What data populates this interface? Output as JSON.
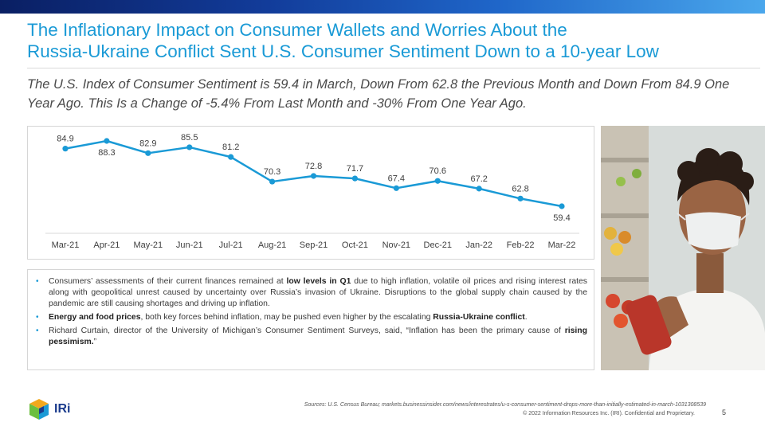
{
  "header": {
    "title_line1": "The Inflationary Impact on Consumer Wallets and Worries About the",
    "title_line2": "Russia-Ukraine Conflict Sent U.S. Consumer Sentiment Down to a 10-year Low",
    "subtitle": "The U.S. Index of Consumer Sentiment is 59.4 in March, Down From 62.8 the Previous Month and Down From 84.9 One Year Ago. This Is a Change of -5.4% From Last Month and -30% From One Year Ago."
  },
  "chart_data": {
    "type": "line",
    "categories": [
      "Mar-21",
      "Apr-21",
      "May-21",
      "Jun-21",
      "Jul-21",
      "Aug-21",
      "Sep-21",
      "Oct-21",
      "Nov-21",
      "Dec-21",
      "Jan-22",
      "Feb-22",
      "Mar-22"
    ],
    "values": [
      84.9,
      88.3,
      82.9,
      85.5,
      81.2,
      70.3,
      72.8,
      71.7,
      67.4,
      70.6,
      67.2,
      62.8,
      59.4
    ],
    "title": "",
    "xlabel": "",
    "ylabel": "",
    "line_color": "#1a9ad6",
    "grid": false
  },
  "bullets": [
    {
      "parts": [
        {
          "text": "Consumers’ assessments of their current finances remained at ",
          "bold": false
        },
        {
          "text": "low levels in Q1",
          "bold": true
        },
        {
          "text": " due to high inflation, volatile oil prices and rising interest rates along with geopolitical unrest caused by uncertainty over Russia’s invasion of Ukraine. Disruptions to the global supply chain caused by the pandemic are still causing shortages and driving up inflation.",
          "bold": false
        }
      ]
    },
    {
      "parts": [
        {
          "text": "Energy and food prices",
          "bold": true
        },
        {
          "text": ", both key forces behind inflation, may be pushed even higher by the escalating ",
          "bold": false
        },
        {
          "text": "Russia-Ukraine conflict",
          "bold": true
        },
        {
          "text": ".",
          "bold": false
        }
      ]
    },
    {
      "parts": [
        {
          "text": "Richard Curtain, director of the University of Michigan’s Consumer Sentiment Surveys, said, “Inflation has been the primary cause of ",
          "bold": false
        },
        {
          "text": "rising pessimism.",
          "bold": true
        },
        {
          "text": "”",
          "bold": false
        }
      ]
    }
  ],
  "footer": {
    "sources": "Sources: U.S. Census Bureau; markets.businessinsider.com/news/interestrates/u-s-consumer-sentiment-drops-more-than-initially-estimated-in-march-1031308539",
    "copyright": "© 2022 Information Resources Inc. (IRI). Confidential and Proprietary.",
    "page_number": "5",
    "logo_text": "IRi"
  },
  "colors": {
    "accent": "#1a9ad6",
    "topbar_dark": "#0a1f63",
    "topbar_light": "#4aa7ec"
  },
  "photo": {
    "icon": "shopper-wearing-mask-photo"
  }
}
